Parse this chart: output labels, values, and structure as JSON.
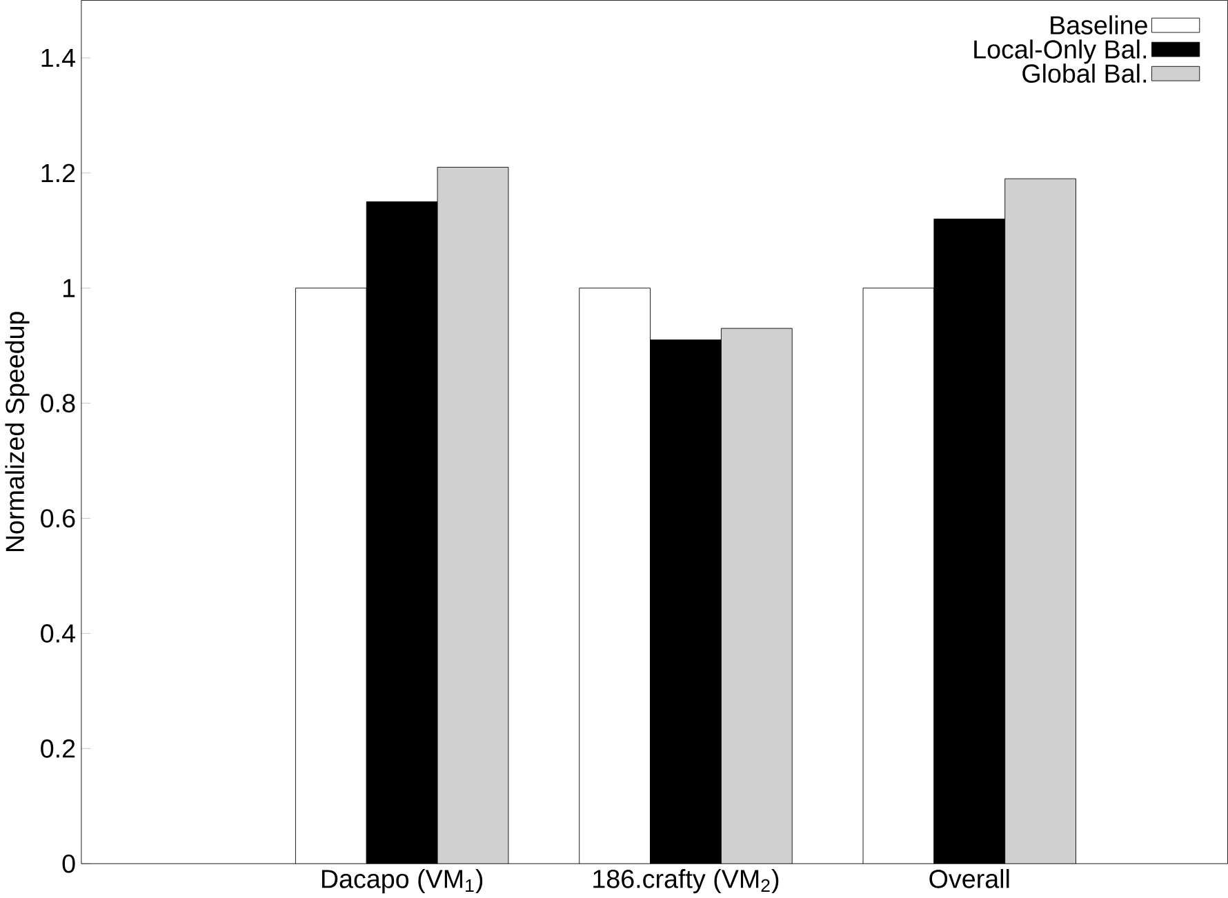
{
  "chart_data": {
    "type": "bar",
    "ylabel": "Normalized Speedup",
    "categories": [
      "Dacapo (VM$_{1}$)",
      "186.crafty (VM$_{2}$)",
      "Overall"
    ],
    "series": [
      {
        "name": "Baseline",
        "color": "#ffffff",
        "values": [
          1,
          1,
          1
        ]
      },
      {
        "name": "Local-Only Bal.",
        "color": "#000000",
        "values": [
          1.15,
          0.91,
          1.12
        ]
      },
      {
        "name": "Global Bal.",
        "color": "#d0d0d0",
        "values": [
          1.21,
          0.93,
          1.19
        ]
      }
    ],
    "ylim": [
      0,
      1.5
    ],
    "yticks": [
      0,
      0.2,
      0.4,
      0.6,
      0.8,
      1,
      1.2,
      1.4
    ],
    "grid": false,
    "legend": "top right"
  }
}
